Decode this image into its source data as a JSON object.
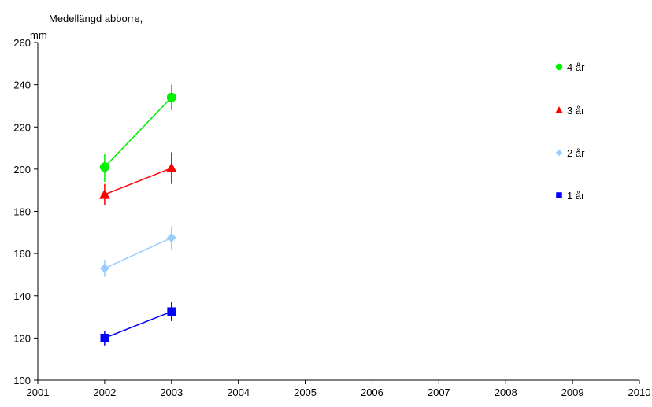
{
  "chart_data": {
    "type": "line",
    "title": "",
    "ylabel_line1": "Medellängd abborre,",
    "ylabel_line2": "mm",
    "xlabel": "",
    "xlim": [
      2001,
      2010
    ],
    "ylim": [
      100,
      260
    ],
    "x_ticks": [
      "2001",
      "2002",
      "2003",
      "2004",
      "2005",
      "2006",
      "2007",
      "2008",
      "2009",
      "2010"
    ],
    "y_ticks": [
      "100",
      "120",
      "140",
      "160",
      "180",
      "200",
      "220",
      "240",
      "260"
    ],
    "grid": false,
    "legend_position": "right",
    "series": [
      {
        "name": "4 år",
        "color": "#00ee00",
        "marker": "circle",
        "x": [
          2002,
          2003
        ],
        "values": [
          201,
          234
        ],
        "err_low": [
          194,
          228
        ],
        "err_high": [
          207,
          240
        ]
      },
      {
        "name": "3 år",
        "color": "#ff0000",
        "marker": "triangle",
        "x": [
          2002,
          2003
        ],
        "values": [
          188,
          200.5
        ],
        "err_low": [
          183,
          193
        ],
        "err_high": [
          193,
          208
        ]
      },
      {
        "name": "2 år",
        "color": "#99ccff",
        "marker": "diamond",
        "x": [
          2002,
          2003
        ],
        "values": [
          153,
          167.5
        ],
        "err_low": [
          149,
          162
        ],
        "err_high": [
          157,
          173
        ]
      },
      {
        "name": "1 år",
        "color": "#0000ff",
        "marker": "square",
        "x": [
          2002,
          2003
        ],
        "values": [
          120,
          132.5
        ],
        "err_low": [
          116.5,
          128
        ],
        "err_high": [
          123.5,
          137
        ]
      }
    ]
  }
}
